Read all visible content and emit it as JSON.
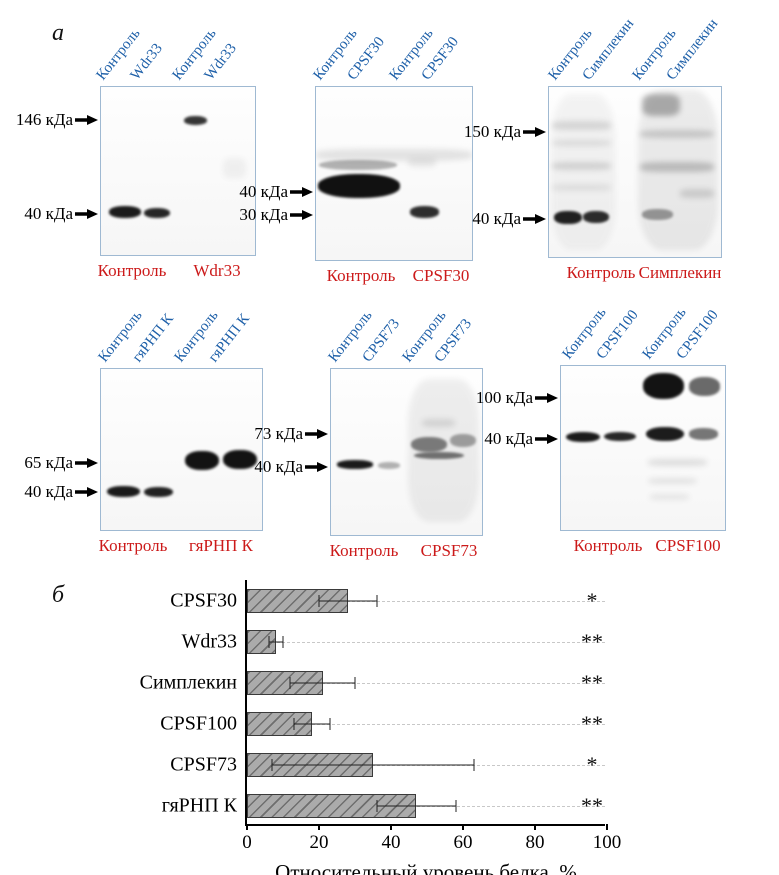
{
  "labels": {
    "a": "а",
    "b": "б"
  },
  "colors": {
    "lane_label": "#1d5fa8",
    "bottom_label": "#cc1a1a",
    "bar_fill": "#ababab"
  },
  "blots": [
    {
      "name": "Wdr33",
      "lanes": [
        "Контроль",
        "Wdr33",
        "Контроль",
        "Wdr33"
      ],
      "markers": [
        "146 кДа",
        "40 кДа"
      ],
      "bottom": [
        "Контроль",
        "Wdr33"
      ]
    },
    {
      "name": "CPSF30",
      "lanes": [
        "Контроль",
        "CPSF30",
        "Контроль",
        "CPSF30"
      ],
      "markers": [
        "40 кДа",
        "30 кДа"
      ],
      "bottom": [
        "Контроль",
        "CPSF30"
      ]
    },
    {
      "name": "Симплекин",
      "lanes": [
        "Контроль",
        "Симплекин",
        "Контроль",
        "Симплекин"
      ],
      "markers": [
        "150 кДа",
        "40 кДа"
      ],
      "bottom": [
        "Контроль",
        "Симплекин"
      ]
    },
    {
      "name": "гяРНП К",
      "lanes": [
        "Контроль",
        "гяРНП К",
        "Контроль",
        "гяРНП К"
      ],
      "markers": [
        "65 кДа",
        "40 кДа"
      ],
      "bottom": [
        "Контроль",
        "гяРНП К"
      ]
    },
    {
      "name": "CPSF73",
      "lanes": [
        "Контроль",
        "CPSF73",
        "Контроль",
        "CPSF73"
      ],
      "markers": [
        "73 кДа",
        "40 кДа"
      ],
      "bottom": [
        "Контроль",
        "CPSF73"
      ]
    },
    {
      "name": "CPSF100",
      "lanes": [
        "Контроль",
        "CPSF100",
        "Контроль",
        "CPSF100"
      ],
      "markers": [
        "100 кДа",
        "40 кДа"
      ],
      "bottom": [
        "Контроль",
        "CPSF100"
      ]
    }
  ],
  "chart_data": {
    "type": "bar",
    "orientation": "horizontal",
    "categories": [
      "CPSF30",
      "Wdr33",
      "Симплекин",
      "CPSF100",
      "CPSF73",
      "гяРНП К"
    ],
    "values": [
      28,
      8,
      21,
      18,
      35,
      47
    ],
    "errors": [
      8,
      2,
      9,
      5,
      28,
      11
    ],
    "significance": [
      "*",
      "**",
      "**",
      "**",
      "*",
      "**"
    ],
    "xlabel": "Относительный уровень белка, %",
    "xticks": [
      0,
      20,
      40,
      60,
      80,
      100
    ],
    "xlim": [
      0,
      100
    ],
    "grid": "dashed horizontal per category",
    "legend": "none"
  }
}
